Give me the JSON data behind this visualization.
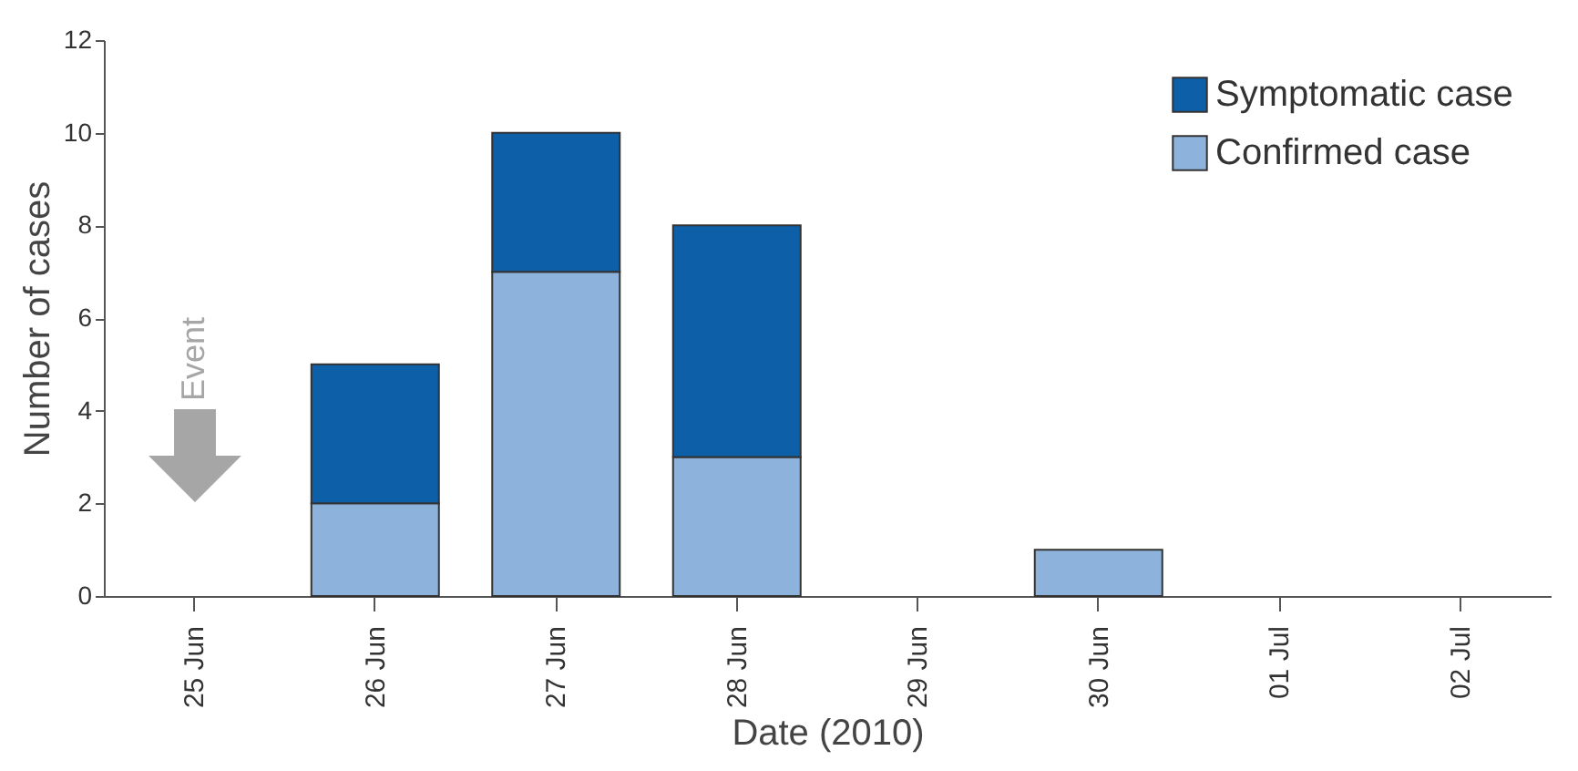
{
  "chart_data": {
    "type": "bar",
    "stacked": true,
    "xlabel": "Date (2010)",
    "ylabel": "Number of cases",
    "categories": [
      "25 Jun",
      "26 Jun",
      "27 Jun",
      "28 Jun",
      "29 Jun",
      "30 Jun",
      "01 Jul",
      "02 Jul"
    ],
    "series": [
      {
        "name": "Confirmed case",
        "color": "#8db3dc",
        "values": [
          0,
          2,
          7,
          3,
          0,
          1,
          0,
          0
        ]
      },
      {
        "name": "Symptomatic case",
        "color": "#0d5fa8",
        "values": [
          0,
          3,
          3,
          5,
          0,
          0,
          0,
          0
        ]
      }
    ],
    "ylim": [
      0,
      12
    ],
    "yticks": [
      0,
      2,
      4,
      6,
      8,
      10,
      12
    ],
    "grid": false,
    "legend": "top right",
    "annotations": [
      "Event"
    ]
  }
}
